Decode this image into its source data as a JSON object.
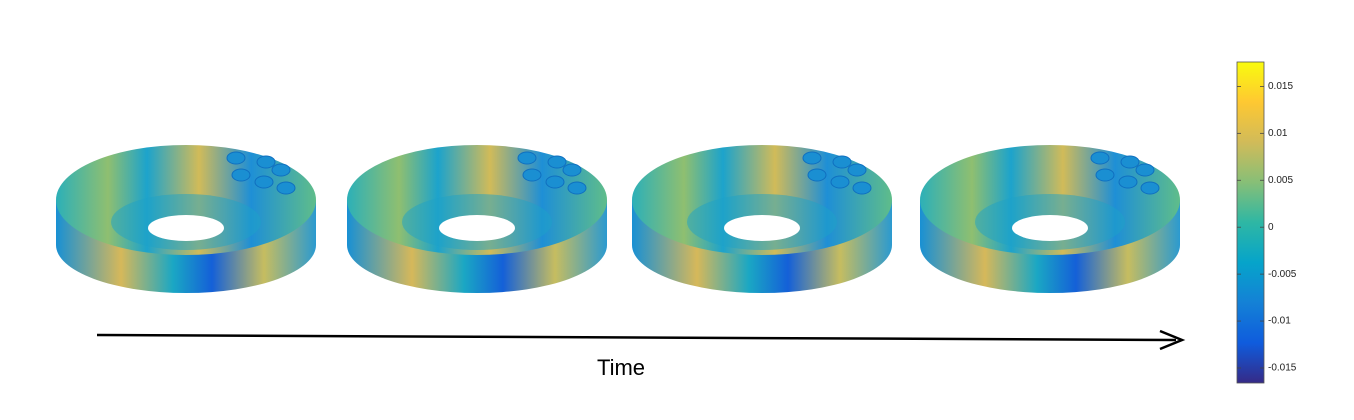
{
  "label": "Time",
  "colorbar": {
    "lim": [
      -0.0166,
      0.0176
    ],
    "ticks": [
      0.015,
      0.01,
      0.005,
      0,
      -0.005,
      -0.01,
      -0.015
    ]
  }
}
